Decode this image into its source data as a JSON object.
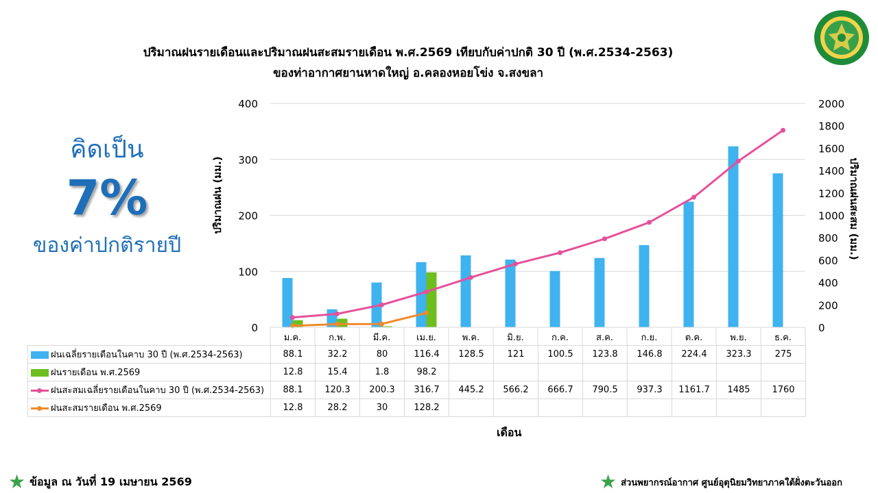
{
  "page": {
    "title_line1": "ปริมาณฝนรายเดือนและปริมาณฝนสะสมรายเดือน  พ.ศ.2569  เทียบกับค่าปกติ  30  ปี  (พ.ศ.2534-2563)",
    "title_line2": "ของท่าอากาศยานหาดใหญ่  อ.คลองหอยโข่ง  จ.สงขลา",
    "percent_top": "คิดเป็น",
    "percent_value": "7%",
    "percent_bottom": "ของค่าปกติรายปี",
    "footer_left": "ข้อมูล ณ วันที่ 19 เมษายน 2569",
    "footer_right": "ส่วนพยากรณ์อากาศ ศูนย์อุตุนิยมวิทยาภาคใต้ฝั่งตะวันออก",
    "logo_icon": "meteorological-department-logo",
    "star_icon": "green-star-icon"
  },
  "chart_data": {
    "type": "bar",
    "xlabel": "เดือน",
    "ylabel": "ปริมาณฝน (มม.)",
    "y2label": "ปริมาณฝนสะสม (มม.)",
    "ylim": [
      0,
      400
    ],
    "yticks": [
      0,
      100,
      200,
      300,
      400
    ],
    "y2lim": [
      0,
      2000
    ],
    "y2ticks": [
      0,
      200,
      400,
      600,
      800,
      1000,
      1200,
      1400,
      1600,
      1800,
      2000
    ],
    "grid": true,
    "categories": [
      "ม.ค.",
      "ก.พ.",
      "มี.ค.",
      "เม.ย.",
      "พ.ค.",
      "มิ.ย.",
      "ก.ค.",
      "ส.ค.",
      "ก.ย.",
      "ต.ค.",
      "พ.ย.",
      "ธ.ค."
    ],
    "series": [
      {
        "name": "ฝนเฉลี่ยรายเดือนในคาบ 30 ปี (พ.ศ.2534-2563)",
        "kind": "bar",
        "axis": "left",
        "color": "#3fb3ef",
        "values": [
          88.1,
          32.2,
          80,
          116.4,
          128.5,
          121,
          100.5,
          123.8,
          146.8,
          224.4,
          323.3,
          275
        ],
        "labels": [
          "88.1",
          "32.2",
          "80",
          "116.4",
          "128.5",
          "121",
          "100.5",
          "123.8",
          "146.8",
          "224.4",
          "323.3",
          "275"
        ]
      },
      {
        "name": "ฝนรายเดือน พ.ศ.2569",
        "kind": "bar",
        "axis": "left",
        "color": "#6cbf1f",
        "values": [
          12.8,
          15.4,
          1.8,
          98.2,
          null,
          null,
          null,
          null,
          null,
          null,
          null,
          null
        ],
        "labels": [
          "12.8",
          "15.4",
          "1.8",
          "98.2",
          "",
          "",
          "",
          "",
          "",
          "",
          "",
          ""
        ]
      },
      {
        "name": "ฝนสะสมเฉลี่ยรายเดือนในคาบ 30 ปี (พ.ศ.2534-2563)",
        "kind": "line",
        "axis": "right",
        "color": "#e6509a",
        "values": [
          88.1,
          120.3,
          200.3,
          316.7,
          445.2,
          566.2,
          666.7,
          790.5,
          937.3,
          1161.7,
          1485,
          1760
        ],
        "labels": [
          "88.1",
          "120.3",
          "200.3",
          "316.7",
          "445.2",
          "566.2",
          "666.7",
          "790.5",
          "937.3",
          "1161.7",
          "1485",
          "1760"
        ]
      },
      {
        "name": "ฝนสะสมรายเดือน พ.ศ.2569",
        "kind": "line",
        "axis": "right",
        "color": "#f0892a",
        "values": [
          12.8,
          28.2,
          30,
          128.2,
          null,
          null,
          null,
          null,
          null,
          null,
          null,
          null
        ],
        "labels": [
          "12.8",
          "28.2",
          "30",
          "128.2",
          "",
          "",
          "",
          "",
          "",
          "",
          "",
          ""
        ]
      }
    ]
  }
}
